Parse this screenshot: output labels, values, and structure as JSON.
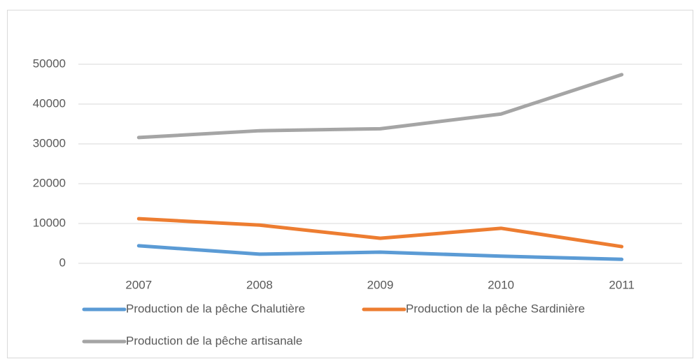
{
  "chart_data": {
    "type": "line",
    "categories": [
      "2007",
      "2008",
      "2009",
      "2010",
      "2011"
    ],
    "series": [
      {
        "name": "Production de la pêche Chalutière",
        "color": "#5b9bd5",
        "values": [
          4400,
          2300,
          2800,
          1800,
          1000
        ]
      },
      {
        "name": "Production de la pêche Sardinière",
        "color": "#ed7d31",
        "values": [
          11200,
          9600,
          6300,
          8800,
          4200
        ]
      },
      {
        "name": "Production de la pêche artisanale",
        "color": "#a5a5a5",
        "values": [
          31600,
          33300,
          33800,
          37500,
          47400
        ]
      }
    ],
    "ylim": [
      0,
      50000
    ],
    "yticks": [
      0,
      10000,
      20000,
      30000,
      40000,
      50000
    ],
    "grid": true,
    "legend": "bottom"
  }
}
